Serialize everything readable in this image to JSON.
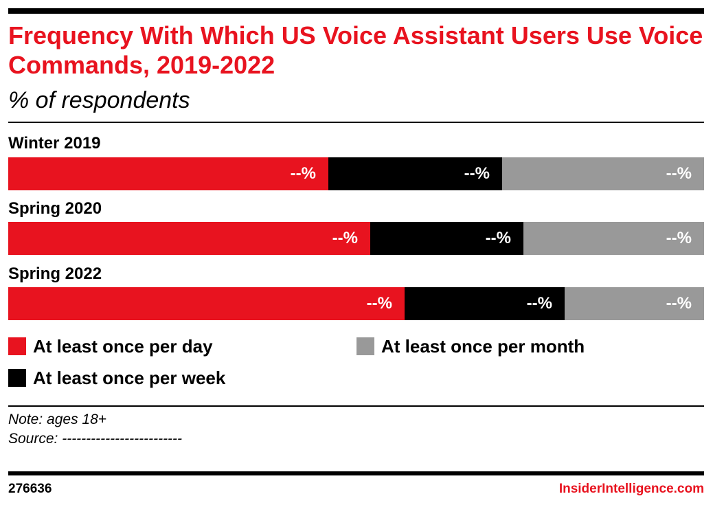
{
  "header": {
    "title": "Frequency With Which US Voice Assistant Users Use Voice Commands, 2019-2022",
    "subtitle": "% of respondents"
  },
  "chart_data": {
    "type": "bar",
    "orientation": "horizontal",
    "stacked": true,
    "categories": [
      "Winter 2019",
      "Spring 2020",
      "Spring 2022"
    ],
    "value_label": "--%",
    "series": [
      {
        "name": "At least once per day",
        "color": "#e8131f",
        "values": [
          46,
          52,
          57
        ]
      },
      {
        "name": "At least once per week",
        "color": "#000000",
        "values": [
          25,
          22,
          23
        ]
      },
      {
        "name": "At least once per month",
        "color": "#999999",
        "values": [
          29,
          26,
          20
        ]
      }
    ],
    "legend": "bottom"
  },
  "footer": {
    "note": "Note: ages 18+",
    "source": "Source: -------------------------",
    "chart_id": "276636",
    "brand": "InsiderIntelligence.com"
  }
}
